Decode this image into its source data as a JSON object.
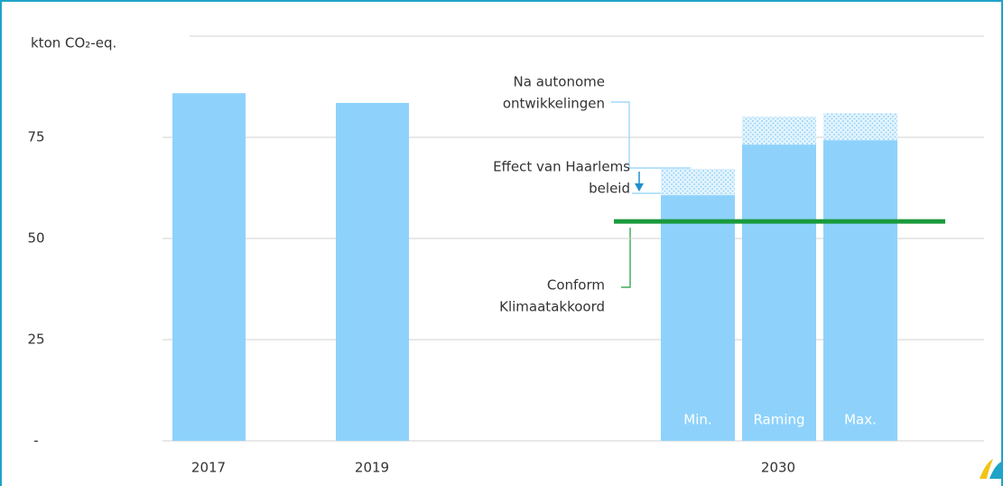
{
  "chart_data": {
    "type": "bar",
    "y_label": "kton CO₂-eq.",
    "ylim": [
      0,
      100
    ],
    "yticks": [
      {
        "value": 0,
        "label": "-"
      },
      25,
      50,
      75
    ],
    "grid": true,
    "color": "#8ed2fb",
    "bars": [
      {
        "label": "2017",
        "value": 85.9
      },
      {
        "label": "2019",
        "value": 83.5
      }
    ],
    "scenarios": {
      "category": "2030",
      "items": [
        {
          "label": "Min.",
          "values": [
            60.7,
            6.5
          ]
        },
        {
          "label": "Raming",
          "values": [
            73.2,
            6.9
          ]
        },
        {
          "label": "Max.",
          "values": [
            74.3,
            6.7
          ]
        }
      ]
    },
    "target": {
      "value": 54.2,
      "color": "#1a9a3c"
    },
    "annotations": {
      "autonomous": [
        "Na autonome",
        "ontwikkelingen"
      ],
      "policy": [
        "Effect van Haarlems",
        "beleid"
      ],
      "agreement": [
        "Conform",
        "Klimaatakkoord"
      ]
    }
  }
}
